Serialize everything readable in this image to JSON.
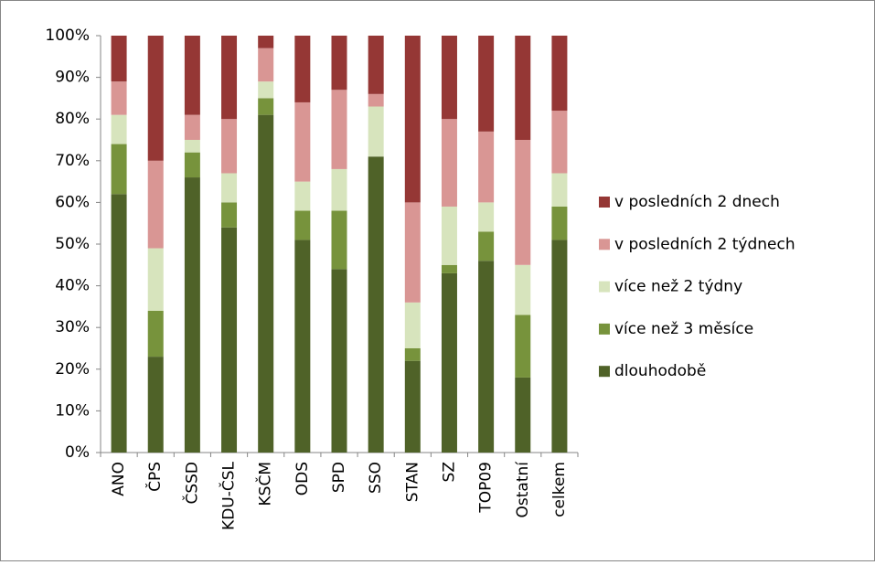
{
  "chart_data": {
    "type": "stacked_bar",
    "categories": [
      "ANO",
      "ČPS",
      "ČSSD",
      "KDU-ČSL",
      "KSČM",
      "ODS",
      "SPD",
      "SSO",
      "STAN",
      "SZ",
      "TOP09",
      "Ostatní",
      "celkem"
    ],
    "series": [
      {
        "name": "dlouhodobě",
        "color": "#4f6228",
        "values": [
          62,
          23,
          66,
          54,
          81,
          51,
          44,
          71,
          22,
          43,
          46,
          18,
          51
        ]
      },
      {
        "name": "více než 3 měsíce",
        "color": "#77933c",
        "values": [
          12,
          11,
          6,
          6,
          4,
          7,
          14,
          0,
          3,
          2,
          7,
          15,
          8
        ]
      },
      {
        "name": "více než 2 týdny",
        "color": "#d7e4bd",
        "values": [
          7,
          15,
          3,
          7,
          4,
          7,
          10,
          12,
          11,
          14,
          7,
          12,
          8
        ]
      },
      {
        "name": "v posledních 2 týdnech",
        "color": "#d99694",
        "values": [
          8,
          21,
          6,
          13,
          8,
          19,
          19,
          3,
          24,
          21,
          17,
          30,
          15
        ]
      },
      {
        "name": "v posledních 2 dnech",
        "color": "#953735",
        "values": [
          11,
          30,
          19,
          20,
          3,
          16,
          13,
          14,
          40,
          20,
          23,
          25,
          18
        ]
      }
    ],
    "ylim": [
      0,
      100
    ],
    "yticks": [
      {
        "value": 0,
        "label": "0%"
      },
      {
        "value": 10,
        "label": "10%"
      },
      {
        "value": 20,
        "label": "20%"
      },
      {
        "value": 30,
        "label": "30%"
      },
      {
        "value": 40,
        "label": "40%"
      },
      {
        "value": 50,
        "label": "50%"
      },
      {
        "value": 60,
        "label": "60%"
      },
      {
        "value": 70,
        "label": "70%"
      },
      {
        "value": 80,
        "label": "80%"
      },
      {
        "value": 90,
        "label": "90%"
      },
      {
        "value": 100,
        "label": "100%"
      }
    ],
    "grid": false,
    "legend": "right"
  }
}
